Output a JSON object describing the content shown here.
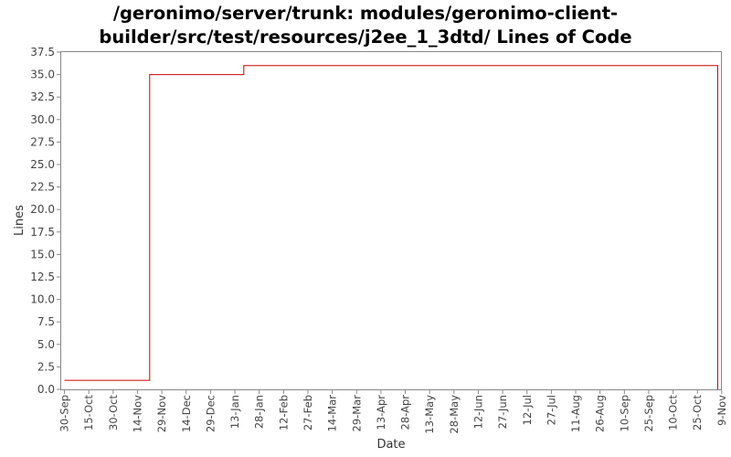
{
  "chart_data": {
    "type": "line",
    "title_lines": [
      "/geronimo/server/trunk: modules/geronimo-client-",
      "builder/src/test/resources/j2ee_1_3dtd/ Lines of Code"
    ],
    "xlabel": "Date",
    "ylabel": "Lines",
    "ylim": [
      0,
      37.5
    ],
    "yticks": [
      "0.0",
      "2.5",
      "5.0",
      "7.5",
      "10.0",
      "12.5",
      "15.0",
      "17.5",
      "20.0",
      "22.5",
      "25.0",
      "27.5",
      "30.0",
      "32.5",
      "35.0",
      "37.5"
    ],
    "xticks": [
      "30-Sep",
      "15-Oct",
      "30-Oct",
      "14-Nov",
      "29-Nov",
      "14-Dec",
      "29-Dec",
      "13-Jan",
      "28-Jan",
      "12-Feb",
      "27-Feb",
      "14-Mar",
      "29-Mar",
      "13-Apr",
      "28-Apr",
      "13-May",
      "28-May",
      "12-Jun",
      "27-Jun",
      "12-Jul",
      "27-Jul",
      "11-Aug",
      "26-Aug",
      "10-Sep",
      "25-Sep",
      "10-Oct",
      "25-Oct",
      "9-Nov"
    ],
    "x_range_days": [
      -2,
      404.5
    ],
    "series": [
      {
        "name": "Lines of Code",
        "color": "#cc0000",
        "step": true,
        "points": [
          {
            "day": 0,
            "value": 1
          },
          {
            "day": 52.5,
            "value": 35
          },
          {
            "day": 110.5,
            "value": 36
          },
          {
            "day": 402.5,
            "value": 36
          },
          {
            "day": 402.5,
            "value": 0
          }
        ]
      }
    ]
  }
}
